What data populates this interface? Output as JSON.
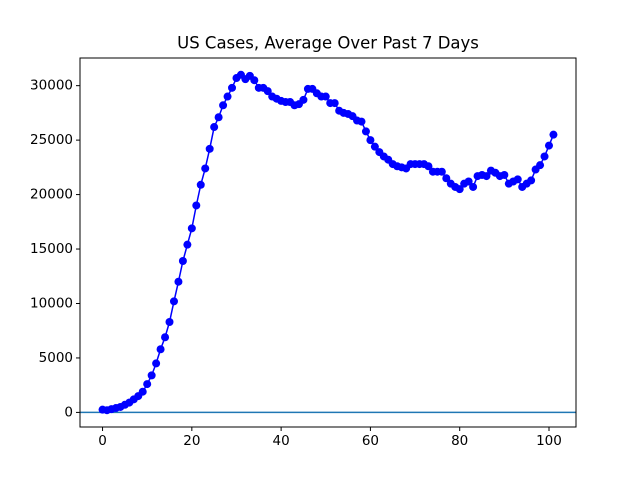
{
  "chart_data": {
    "type": "line",
    "title": "US Cases, Average Over Past 7 Days",
    "x": [
      0,
      1,
      2,
      3,
      4,
      5,
      6,
      7,
      8,
      9,
      10,
      11,
      12,
      13,
      14,
      15,
      16,
      17,
      18,
      19,
      20,
      21,
      22,
      23,
      24,
      25,
      26,
      27,
      28,
      29,
      30,
      31,
      32,
      33,
      34,
      35,
      36,
      37,
      38,
      39,
      40,
      41,
      42,
      43,
      44,
      45,
      46,
      47,
      48,
      49,
      50,
      51,
      52,
      53,
      54,
      55,
      56,
      57,
      58,
      59,
      60,
      61,
      62,
      63,
      64,
      65,
      66,
      67,
      68,
      69,
      70,
      71,
      72,
      73,
      74,
      75,
      76,
      77,
      78,
      79,
      80,
      81,
      82,
      83,
      84,
      85,
      86,
      87,
      88,
      89,
      90,
      91,
      92,
      93,
      94,
      95,
      96,
      97,
      98,
      99,
      100,
      101
    ],
    "series": [
      {
        "color": "#0000ff",
        "values": [
          250,
          200,
          300,
          400,
          500,
          700,
          900,
          1200,
          1500,
          1900,
          2600,
          3400,
          4500,
          5800,
          6900,
          8300,
          10200,
          12000,
          13900,
          15400,
          16900,
          19000,
          20900,
          22400,
          24200,
          26200,
          27100,
          28200,
          29000,
          29800,
          30700,
          31000,
          30600,
          30900,
          30500,
          29800,
          29800,
          29500,
          29000,
          28800,
          28600,
          28500,
          28500,
          28200,
          28300,
          28700,
          29700,
          29700,
          29300,
          29000,
          29000,
          28400,
          28400,
          27700,
          27500,
          27400,
          27200,
          26800,
          26700,
          25800,
          25000,
          24400,
          23900,
          23500,
          23200,
          22800,
          22600,
          22500,
          22400,
          22800,
          22800,
          22800,
          22800,
          22600,
          22100,
          22100,
          22100,
          21500,
          21000,
          20700,
          20500,
          21000,
          21200,
          20700,
          21700,
          21800,
          21700,
          22200,
          22000,
          21700,
          21800,
          21000,
          21200,
          21400,
          20700,
          21000,
          21300,
          22300,
          22700,
          23500,
          24500,
          25500
        ]
      }
    ],
    "hlines": [
      {
        "value": 0,
        "color": "#1f77b4"
      }
    ],
    "xlim": [
      -5.05,
      106.05
    ],
    "ylim": [
      -1340,
      32540
    ],
    "xticks": [
      0,
      20,
      40,
      60,
      80,
      100
    ],
    "yticks": [
      0,
      5000,
      10000,
      15000,
      20000,
      25000,
      30000
    ]
  }
}
